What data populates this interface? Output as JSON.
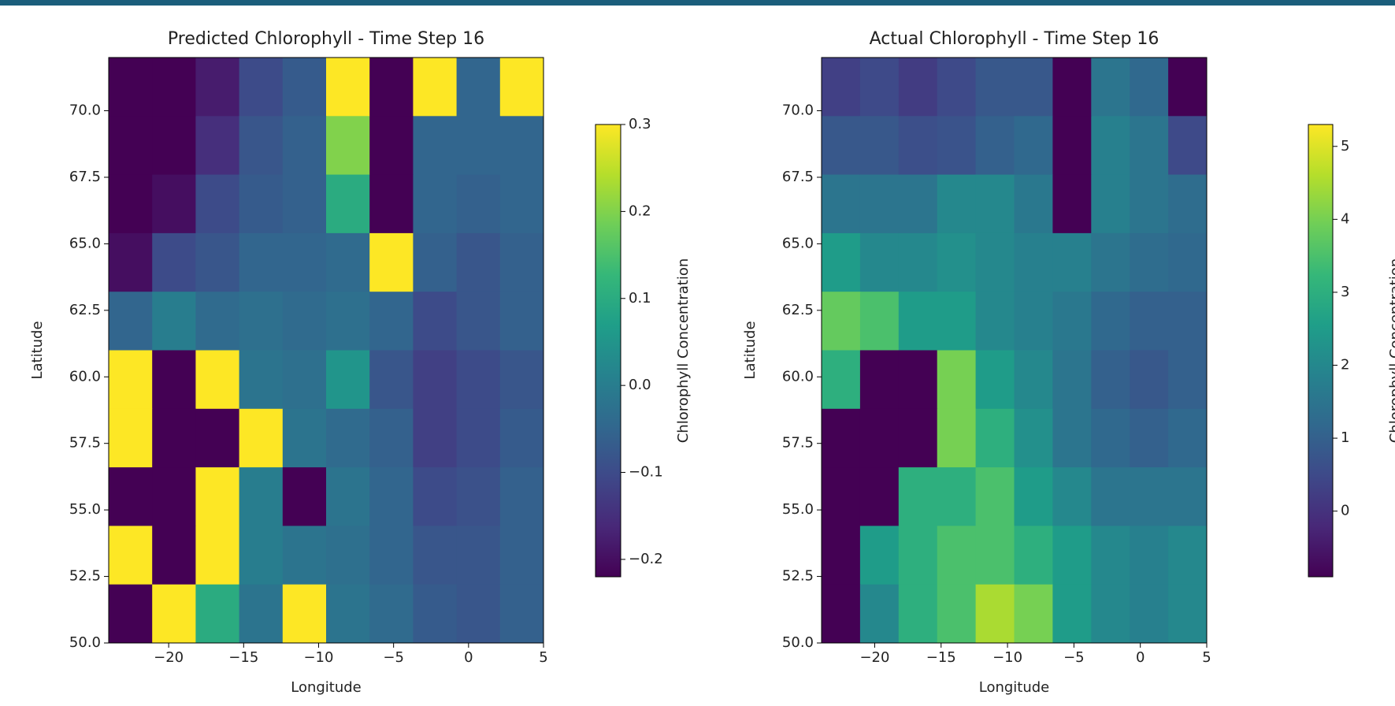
{
  "chart_data": [
    {
      "type": "heatmap",
      "title": "Predicted Chlorophyll - Time Step 16",
      "xlabel": "Longitude",
      "ylabel": "Latitude",
      "x": [
        -22.55,
        -19.65,
        -16.75,
        -13.85,
        -10.95,
        -8.05,
        -5.15,
        -2.25,
        0.65,
        3.55
      ],
      "y": [
        70.9,
        68.7,
        66.5,
        64.3,
        62.1,
        59.9,
        57.7,
        55.5,
        53.3,
        51.1
      ],
      "values": [
        [
          -0.22,
          -0.22,
          -0.18,
          -0.1,
          -0.07,
          0.3,
          -0.22,
          0.3,
          -0.05,
          0.3
        ],
        [
          -0.22,
          -0.22,
          -0.15,
          -0.08,
          -0.06,
          0.2,
          -0.22,
          -0.05,
          -0.05,
          -0.05
        ],
        [
          -0.22,
          -0.2,
          -0.1,
          -0.07,
          -0.06,
          0.1,
          -0.22,
          -0.05,
          -0.06,
          -0.05
        ],
        [
          -0.2,
          -0.1,
          -0.08,
          -0.05,
          -0.05,
          -0.04,
          0.3,
          -0.06,
          -0.08,
          -0.06
        ],
        [
          -0.05,
          0.0,
          -0.04,
          -0.03,
          -0.04,
          -0.03,
          -0.05,
          -0.1,
          -0.08,
          -0.06
        ],
        [
          0.3,
          -0.22,
          0.3,
          -0.02,
          -0.03,
          0.05,
          -0.08,
          -0.12,
          -0.1,
          -0.08
        ],
        [
          0.3,
          -0.22,
          -0.22,
          0.3,
          -0.02,
          -0.04,
          -0.06,
          -0.12,
          -0.1,
          -0.07
        ],
        [
          -0.22,
          -0.22,
          0.3,
          0.0,
          -0.22,
          -0.02,
          -0.05,
          -0.1,
          -0.09,
          -0.06
        ],
        [
          0.3,
          -0.22,
          0.3,
          0.0,
          -0.02,
          -0.03,
          -0.05,
          -0.08,
          -0.08,
          -0.06
        ],
        [
          -0.22,
          0.3,
          0.1,
          -0.02,
          0.3,
          -0.02,
          -0.04,
          -0.07,
          -0.08,
          -0.06
        ]
      ],
      "xlim": [
        -24,
        5
      ],
      "ylim": [
        50,
        72
      ],
      "xticks": [
        {
          "value": -20,
          "label": "−20"
        },
        {
          "value": -15,
          "label": "−15"
        },
        {
          "value": -10,
          "label": "−10"
        },
        {
          "value": -5,
          "label": "−5"
        },
        0,
        5
      ],
      "yticks": [
        {
          "value": 50,
          "label": "50.0"
        },
        52.5,
        {
          "value": 55,
          "label": "55.0"
        },
        57.5,
        {
          "value": 60,
          "label": "60.0"
        },
        62.5,
        {
          "value": 65,
          "label": "65.0"
        },
        67.5,
        {
          "value": 70,
          "label": "70.0"
        }
      ],
      "clim": [
        -0.22,
        0.3
      ],
      "clabel": "Chlorophyll Concentration",
      "cticks": [
        {
          "value": -0.2,
          "label": "−0.2"
        },
        {
          "value": -0.1,
          "label": "−0.1"
        },
        {
          "value": 0,
          "label": "0.0"
        },
        0.1,
        0.2,
        0.3
      ],
      "colormap": [
        "#440154",
        "#482878",
        "#3e4989",
        "#31688e",
        "#26828e",
        "#1f9e89",
        "#35b779",
        "#6ece58",
        "#b5de2b",
        "#fde725"
      ]
    },
    {
      "type": "heatmap",
      "title": "Actual Chlorophyll - Time Step 16",
      "xlabel": "Longitude",
      "ylabel": "Latitude",
      "x": [
        -22.55,
        -19.65,
        -16.75,
        -13.85,
        -10.95,
        -8.05,
        -5.15,
        -2.25,
        0.65,
        3.55
      ],
      "y": [
        70.9,
        68.7,
        66.5,
        64.3,
        62.1,
        59.9,
        57.7,
        55.5,
        53.3,
        51.1
      ],
      "values": [
        [
          0.3,
          0.5,
          0.2,
          0.5,
          0.8,
          0.8,
          -0.9,
          1.5,
          1.2,
          -0.9
        ],
        [
          0.8,
          0.8,
          0.6,
          0.7,
          1.0,
          1.2,
          -0.9,
          1.8,
          1.5,
          0.5
        ],
        [
          1.5,
          1.5,
          1.5,
          2.0,
          2.0,
          1.6,
          -0.9,
          1.8,
          1.5,
          1.3
        ],
        [
          2.5,
          2.0,
          2.0,
          2.2,
          2.0,
          1.8,
          1.8,
          1.5,
          1.3,
          1.2
        ],
        [
          3.8,
          3.5,
          2.5,
          2.5,
          2.0,
          1.8,
          1.6,
          1.2,
          1.0,
          1.0
        ],
        [
          3.0,
          -0.9,
          -0.9,
          4.0,
          2.5,
          2.0,
          1.5,
          1.0,
          0.8,
          1.0
        ],
        [
          -0.9,
          -0.9,
          -0.9,
          4.0,
          3.0,
          2.2,
          1.5,
          1.2,
          1.0,
          1.2
        ],
        [
          -0.9,
          -0.9,
          3.0,
          3.0,
          3.5,
          2.5,
          2.0,
          1.5,
          1.5,
          1.5
        ],
        [
          -0.9,
          2.5,
          3.0,
          3.5,
          3.5,
          3.0,
          2.5,
          2.0,
          1.8,
          2.0
        ],
        [
          -0.9,
          2.0,
          3.0,
          3.5,
          4.5,
          4.0,
          2.5,
          2.0,
          1.8,
          2.0
        ]
      ],
      "xlim": [
        -24,
        5
      ],
      "ylim": [
        50,
        72
      ],
      "xticks": [
        {
          "value": -20,
          "label": "−20"
        },
        {
          "value": -15,
          "label": "−15"
        },
        {
          "value": -10,
          "label": "−10"
        },
        {
          "value": -5,
          "label": "−5"
        },
        0,
        5
      ],
      "yticks": [
        {
          "value": 50,
          "label": "50.0"
        },
        52.5,
        {
          "value": 55,
          "label": "55.0"
        },
        57.5,
        {
          "value": 60,
          "label": "60.0"
        },
        62.5,
        {
          "value": 65,
          "label": "65.0"
        },
        67.5,
        {
          "value": 70,
          "label": "70.0"
        }
      ],
      "clim": [
        -0.9,
        5.3
      ],
      "clabel": "Chlorophyll Concentration",
      "cticks": [
        0,
        1,
        2,
        3,
        4,
        5
      ],
      "colormap": [
        "#440154",
        "#482878",
        "#3e4989",
        "#31688e",
        "#26828e",
        "#1f9e89",
        "#35b779",
        "#6ece58",
        "#b5de2b",
        "#fde725"
      ]
    }
  ]
}
